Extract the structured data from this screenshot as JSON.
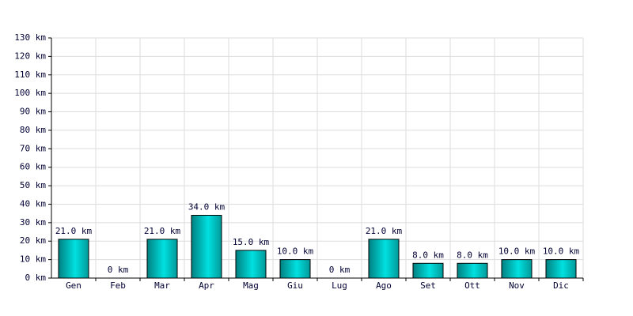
{
  "chart_data": {
    "type": "bar",
    "categories": [
      "Gen",
      "Feb",
      "Mar",
      "Apr",
      "Mag",
      "Giu",
      "Lug",
      "Ago",
      "Set",
      "Ott",
      "Nov",
      "Dic"
    ],
    "values": [
      21,
      0,
      21,
      34,
      15,
      10,
      0,
      21,
      8,
      8,
      10,
      10
    ],
    "value_labels": [
      "21.0 km",
      "0 km",
      "21.0 km",
      "34.0 km",
      "15.0 km",
      "10.0 km",
      "0 km",
      "21.0 km",
      "8.0 km",
      "8.0 km",
      "10.0 km",
      "10.0 km"
    ],
    "color": "#00e0e0",
    "ylim": [
      0,
      130
    ],
    "yticks": [
      {
        "value": 0,
        "label": "0 km"
      },
      {
        "value": 10,
        "label": "10 km"
      },
      {
        "value": 20,
        "label": "20 km"
      },
      {
        "value": 30,
        "label": "30 km"
      },
      {
        "value": 40,
        "label": "40 km"
      },
      {
        "value": 50,
        "label": "50 km"
      },
      {
        "value": 60,
        "label": "60 km"
      },
      {
        "value": 70,
        "label": "70 km"
      },
      {
        "value": 80,
        "label": "80 km"
      },
      {
        "value": 90,
        "label": "90 km"
      },
      {
        "value": 100,
        "label": "100 km"
      },
      {
        "value": 110,
        "label": "110 km"
      },
      {
        "value": 120,
        "label": "120 km"
      },
      {
        "value": 130,
        "label": "130 km"
      }
    ],
    "grid": true
  }
}
